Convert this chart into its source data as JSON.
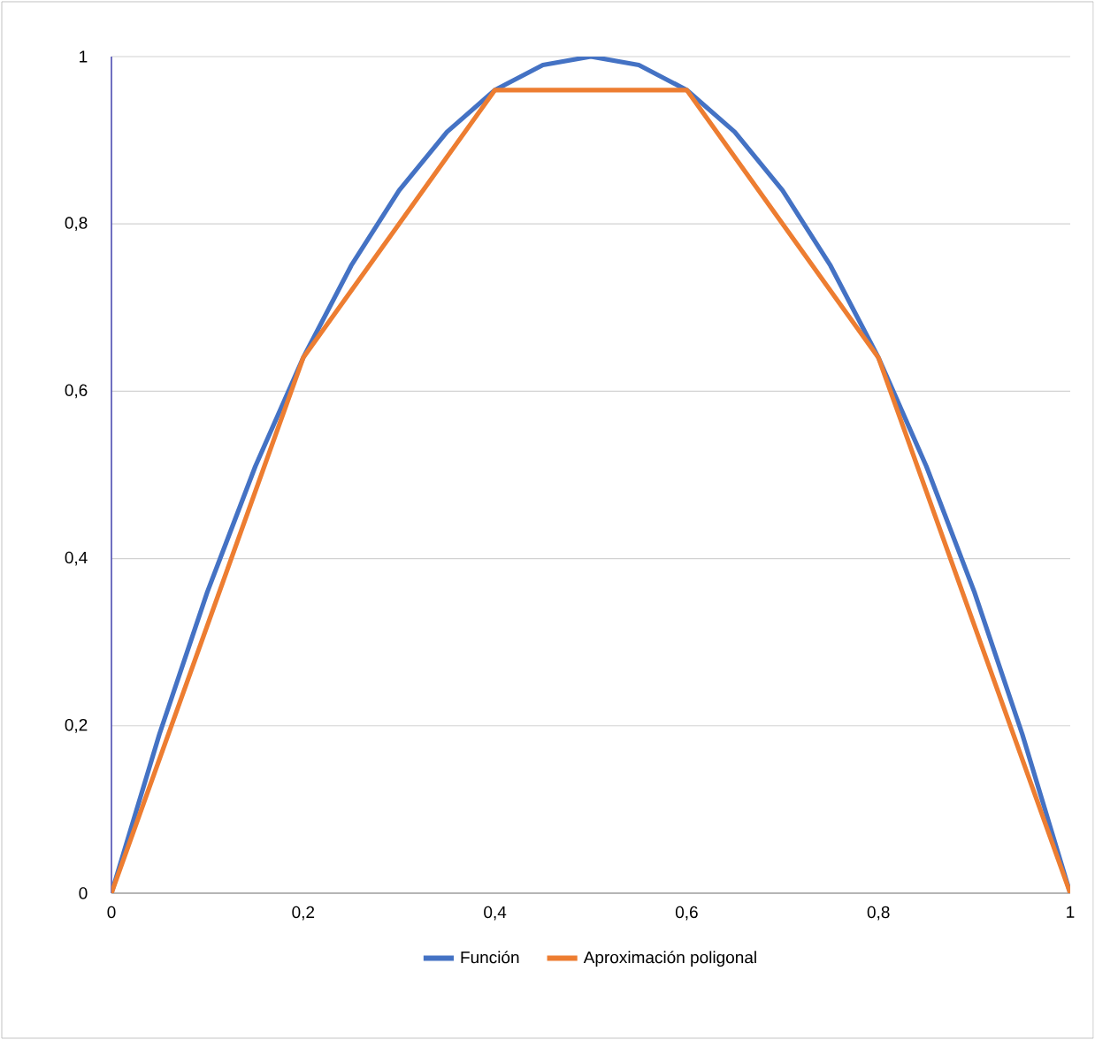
{
  "chart_data": {
    "type": "line",
    "xlim": [
      0,
      1
    ],
    "ylim": [
      0,
      1
    ],
    "xticks": [
      0,
      {
        "value": 0.2,
        "label": "0,2"
      },
      {
        "value": 0.4,
        "label": "0,4"
      },
      {
        "value": 0.6,
        "label": "0,6"
      },
      {
        "value": 0.8,
        "label": "0,8"
      },
      1
    ],
    "yticks": [
      0,
      {
        "value": 0.2,
        "label": "0,2"
      },
      {
        "value": 0.4,
        "label": "0,4"
      },
      {
        "value": 0.6,
        "label": "0,6"
      },
      {
        "value": 0.8,
        "label": "0,8"
      },
      1
    ],
    "grid": "y",
    "legend": "bottom",
    "marker": "none",
    "line_style": "solid",
    "series": [
      {
        "name": "Función",
        "color": "#4472c4",
        "x": [
          0,
          0.05,
          0.1,
          0.15,
          0.2,
          0.25,
          0.3,
          0.35,
          0.4,
          0.45,
          0.5,
          0.55,
          0.6,
          0.65,
          0.7,
          0.75,
          0.8,
          0.85,
          0.9,
          0.95,
          1
        ],
        "values": [
          0,
          0.19,
          0.36,
          0.51,
          0.64,
          0.75,
          0.84,
          0.91,
          0.96,
          0.99,
          1,
          0.99,
          0.96,
          0.91,
          0.84,
          0.75,
          0.64,
          0.51,
          0.36,
          0.19,
          0
        ]
      },
      {
        "name": "Aproximación poligonal",
        "color": "#ed7d31",
        "x": [
          0,
          0.2,
          0.4,
          0.6,
          0.8,
          1
        ],
        "values": [
          0,
          0.64,
          0.96,
          0.96,
          0.64,
          0
        ]
      }
    ]
  }
}
